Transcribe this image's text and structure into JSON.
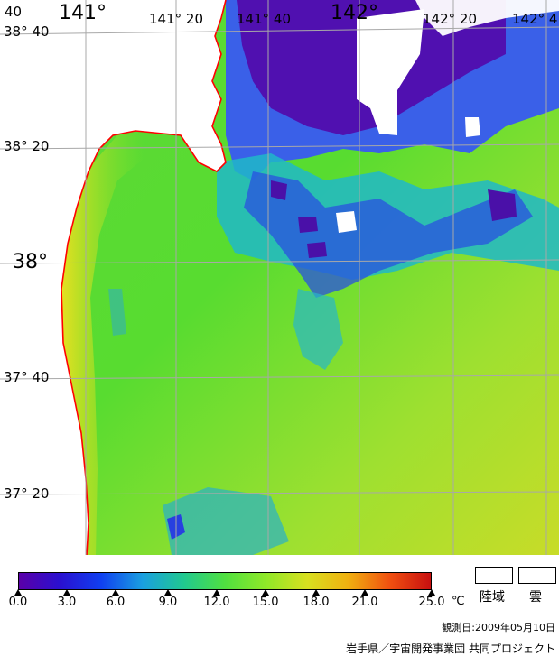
{
  "map": {
    "lon_labels": [
      "141°",
      "141° 20",
      "141° 40",
      "142°",
      "142° 20",
      "142° 4"
    ],
    "lat_labels": [
      "38° 40",
      "38° 20",
      "38°",
      "37° 40",
      "37° 20"
    ],
    "corner_label": "40"
  },
  "colorbar": {
    "ticks": [
      "0.0",
      "3.0",
      "6.0",
      "9.0",
      "12.0",
      "15.0",
      "18.0",
      "21.0",
      "25.0"
    ],
    "unit": "℃",
    "colors": [
      "#5a00a8",
      "#2a10d0",
      "#1040f0",
      "#1a9fe0",
      "#20c890",
      "#50e040",
      "#90e828",
      "#d8e020",
      "#f0b010",
      "#f05010",
      "#c81010"
    ]
  },
  "legend": {
    "land_label": "陸域",
    "cloud_label": "雲"
  },
  "footer": {
    "observation_date": "観測日:2009年05月10日",
    "project": "岩手県／宇宙開発事業団 共同プロジェクト"
  },
  "coastline_color": "#ff0000"
}
